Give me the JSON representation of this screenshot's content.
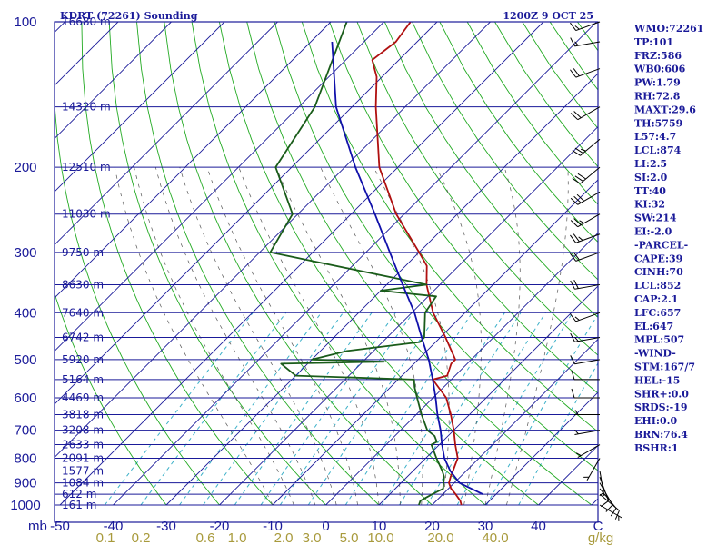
{
  "title": {
    "station": "KDRT (72261) Sounding",
    "time": "1200Z  9 OCT 25"
  },
  "axes": {
    "pressure_label": "mb",
    "pressure_ticks": [
      100,
      200,
      300,
      400,
      500,
      600,
      700,
      800,
      900,
      1000
    ],
    "temp_ticks": [
      -50,
      -40,
      -30,
      -20,
      -10,
      0,
      10,
      20,
      30,
      40
    ],
    "temp_unit": "C",
    "mixing_ratio_ticks": [
      "0.1",
      "0.2",
      "0.6",
      "1.0",
      "2.0",
      "3.0",
      "5.0",
      "10.0",
      "20.0",
      "40.0"
    ],
    "mixing_ratio_unit": "g/kg",
    "pressure_range": [
      100,
      1000
    ],
    "temp_range_at_1000": [
      -50,
      50
    ],
    "skew": "45 degrees",
    "log_pressure": true,
    "dry_adiabats_color": "#22aa22",
    "moist_adiabats_color": "#22aa22",
    "mixing_ratio_lines_color": "#a89a3c",
    "isotherm_color": "#1a1a99",
    "isobar_color": "#1a1a99"
  },
  "heights": [
    {
      "p": 100,
      "label": "16680 m"
    },
    {
      "p": 150,
      "label": "14320 m"
    },
    {
      "p": 200,
      "label": "12510 m"
    },
    {
      "p": 250,
      "label": "11030 m"
    },
    {
      "p": 300,
      "label": "9750 m"
    },
    {
      "p": 350,
      "label": "8630 m"
    },
    {
      "p": 400,
      "label": "7640 m"
    },
    {
      "p": 450,
      "label": "6742 m"
    },
    {
      "p": 500,
      "label": "5920 m"
    },
    {
      "p": 550,
      "label": "5164 m"
    },
    {
      "p": 600,
      "label": "4469 m"
    },
    {
      "p": 650,
      "label": "3818 m"
    },
    {
      "p": 700,
      "label": "3208 m"
    },
    {
      "p": 750,
      "label": "2633 m"
    },
    {
      "p": 800,
      "label": "2091 m"
    },
    {
      "p": 850,
      "label": "1577 m"
    },
    {
      "p": 900,
      "label": "1084 m"
    },
    {
      "p": 950,
      "label": "612 m"
    },
    {
      "p": 1000,
      "label": "161 m"
    }
  ],
  "indices": [
    "WMO:72261",
    "TP:101",
    "FRZ:586",
    "WB0:606",
    "PW:1.79",
    "RH:72.8",
    "MAXT:29.6",
    "TH:5759",
    "L57:4.7",
    "LCL:874",
    "LI:2.5",
    "SI:2.0",
    "TT:40",
    "KI:32",
    "SW:214",
    "EI:-2.0",
    "-PARCEL-",
    "CAPE:39",
    "CINH:70",
    "LCL:852",
    "CAP:2.1",
    "LFC:657",
    "EL:647",
    "MPL:507",
    "-WIND-",
    "STM:167/7",
    "HEL:-15",
    "SHR+:0.0",
    "SRDS:-19",
    "EHI:0.0",
    "BRN:76.4",
    "BSHR:1"
  ],
  "chart_data": {
    "type": "line",
    "title": "KDRT (72261) Sounding",
    "subtitle": "1200Z  9 OCT 25",
    "xlabel": "C",
    "ylabel": "mb",
    "ylim": [
      1000,
      100
    ],
    "xlim": [
      -50,
      50
    ],
    "series": [
      {
        "color": "#b01010",
        "points": [
          [
            1000,
            25.5
          ],
          [
            980,
            24.5
          ],
          [
            950,
            22.4
          ],
          [
            925,
            20.5
          ],
          [
            900,
            19.0
          ],
          [
            875,
            18.2
          ],
          [
            850,
            17.5
          ],
          [
            800,
            16.0
          ],
          [
            750,
            13.0
          ],
          [
            700,
            10.0
          ],
          [
            650,
            6.5
          ],
          [
            600,
            2.5
          ],
          [
            550,
            -3.5
          ],
          [
            540,
            -1.5
          ],
          [
            510,
            -3.0
          ],
          [
            500,
            -3.0
          ],
          [
            450,
            -9.0
          ],
          [
            400,
            -16.0
          ],
          [
            350,
            -22.5
          ],
          [
            320,
            -26.0
          ],
          [
            300,
            -30.0
          ],
          [
            250,
            -41.5
          ],
          [
            200,
            -53.5
          ],
          [
            150,
            -65.5
          ],
          [
            130,
            -71.0
          ],
          [
            120,
            -75.0
          ],
          [
            110,
            -74.0
          ],
          [
            100,
            -75.0
          ]
        ]
      },
      {
        "color": "#1a5c1a",
        "points": [
          [
            1000,
            17.5
          ],
          [
            980,
            17.0
          ],
          [
            950,
            18.0
          ],
          [
            925,
            19.0
          ],
          [
            900,
            18.0
          ],
          [
            875,
            17.0
          ],
          [
            850,
            15.5
          ],
          [
            800,
            12.0
          ],
          [
            750,
            8.5
          ],
          [
            740,
            9.0
          ],
          [
            720,
            7.5
          ],
          [
            700,
            5.0
          ],
          [
            650,
            1.0
          ],
          [
            600,
            -3.0
          ],
          [
            570,
            -5.5
          ],
          [
            550,
            -7.0
          ],
          [
            540,
            -30.0
          ],
          [
            510,
            -35.0
          ],
          [
            505,
            -16.0
          ],
          [
            500,
            -30.0
          ],
          [
            480,
            -25.0
          ],
          [
            460,
            -13.0
          ],
          [
            450,
            -13.0
          ],
          [
            400,
            -17.5
          ],
          [
            370,
            -18.5
          ],
          [
            360,
            -30.0
          ],
          [
            350,
            -22.5
          ],
          [
            300,
            -58.0
          ],
          [
            250,
            -61.0
          ],
          [
            200,
            -73.0
          ],
          [
            150,
            -77.0
          ],
          [
            100,
            -87.0
          ]
        ]
      },
      {
        "color": "#1010aa",
        "points": [
          [
            950,
            27.5
          ],
          [
            900,
            21.0
          ],
          [
            850,
            17.0
          ],
          [
            800,
            13.5
          ],
          [
            750,
            10.5
          ],
          [
            700,
            7.5
          ],
          [
            650,
            4.0
          ],
          [
            600,
            0.5
          ],
          [
            550,
            -3.5
          ],
          [
            500,
            -8.0
          ],
          [
            450,
            -13.5
          ],
          [
            400,
            -19.5
          ],
          [
            350,
            -27.0
          ],
          [
            300,
            -35.5
          ],
          [
            250,
            -45.5
          ],
          [
            200,
            -58.0
          ],
          [
            150,
            -73.0
          ],
          [
            110,
            -86.0
          ]
        ]
      }
    ],
    "wind_barbs": [
      {
        "p": 1000,
        "dir": 120,
        "spd": 5
      },
      {
        "p": 950,
        "dir": 130,
        "spd": 10
      },
      {
        "p": 925,
        "dir": 140,
        "spd": 10
      },
      {
        "p": 900,
        "dir": 150,
        "spd": 10
      },
      {
        "p": 875,
        "dir": 160,
        "spd": 10
      },
      {
        "p": 850,
        "dir": 170,
        "spd": 5
      },
      {
        "p": 800,
        "dir": 210,
        "spd": 5
      },
      {
        "p": 750,
        "dir": 240,
        "spd": 5
      },
      {
        "p": 700,
        "dir": 260,
        "spd": 5
      },
      {
        "p": 650,
        "dir": 270,
        "spd": 5
      },
      {
        "p": 600,
        "dir": 270,
        "spd": 10
      },
      {
        "p": 550,
        "dir": 270,
        "spd": 10
      },
      {
        "p": 500,
        "dir": 260,
        "spd": 10
      },
      {
        "p": 450,
        "dir": 260,
        "spd": 15
      },
      {
        "p": 400,
        "dir": 250,
        "spd": 15
      },
      {
        "p": 350,
        "dir": 260,
        "spd": 20
      },
      {
        "p": 300,
        "dir": 250,
        "spd": 20
      },
      {
        "p": 275,
        "dir": 250,
        "spd": 25
      },
      {
        "p": 250,
        "dir": 240,
        "spd": 25
      },
      {
        "p": 225,
        "dir": 240,
        "spd": 30
      },
      {
        "p": 200,
        "dir": 230,
        "spd": 30
      },
      {
        "p": 175,
        "dir": 230,
        "spd": 25
      },
      {
        "p": 150,
        "dir": 240,
        "spd": 20
      },
      {
        "p": 125,
        "dir": 250,
        "spd": 20
      },
      {
        "p": 110,
        "dir": 260,
        "spd": 15
      },
      {
        "p": 100,
        "dir": 250,
        "spd": 15
      }
    ]
  }
}
